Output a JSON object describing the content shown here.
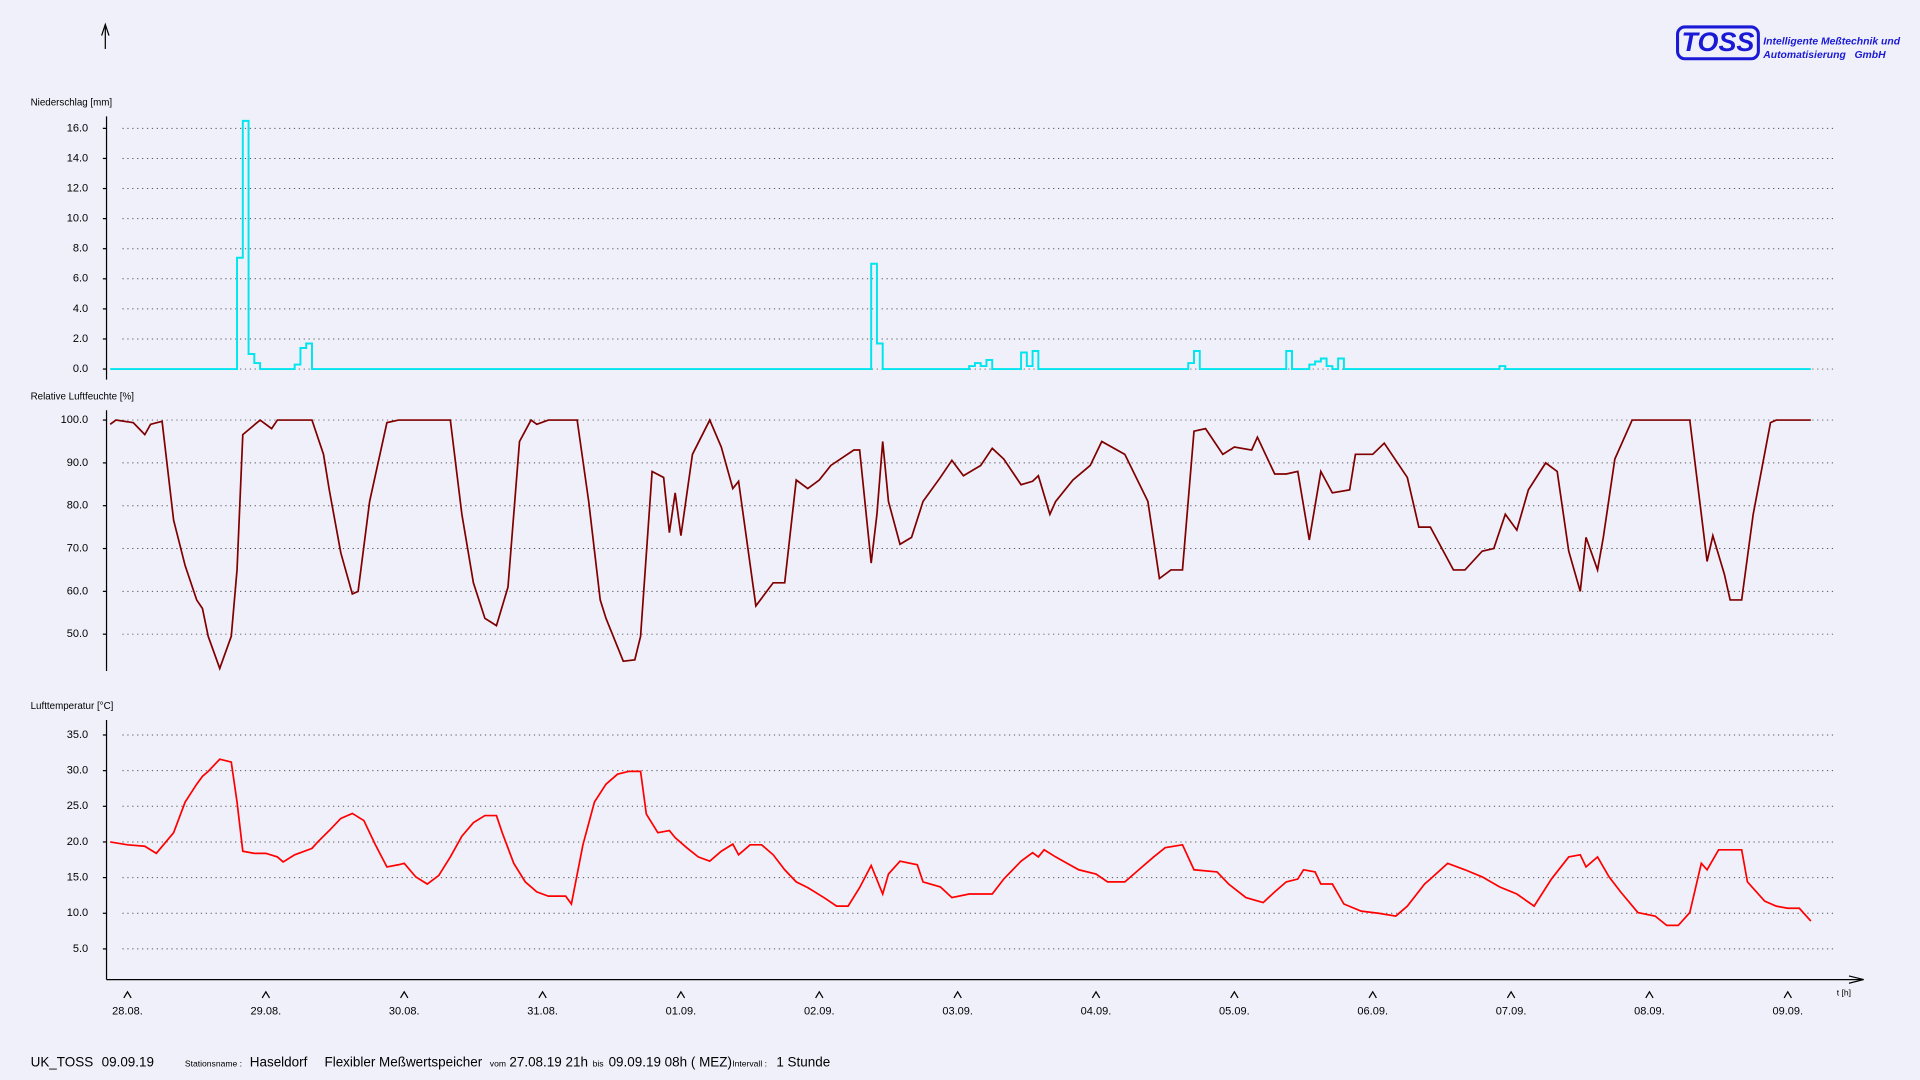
{
  "header": {
    "logo": "TOSS",
    "company": [
      "Intelligente Meßtechnik und",
      "Automatisierung   GmbH"
    ]
  },
  "chart_data": [
    {
      "type": "step",
      "title": "Niederschlag [mm]",
      "color": "#00e5ee",
      "x": [
        0,
        22,
        23,
        24,
        25,
        26,
        32,
        33,
        34,
        35,
        132,
        133,
        134,
        149,
        150,
        151,
        152,
        153,
        158,
        159,
        160,
        161,
        187,
        188,
        189,
        204,
        205,
        208,
        209,
        210,
        211,
        212,
        213,
        214,
        241,
        242,
        295
      ],
      "values": [
        0,
        7.4,
        16.5,
        1.0,
        0.4,
        0,
        0.3,
        1.4,
        1.7,
        0,
        7.0,
        1.7,
        0,
        0.2,
        0.4,
        0.2,
        0.6,
        0,
        1.1,
        0.2,
        1.2,
        0,
        0.4,
        1.2,
        0,
        1.2,
        0,
        0.3,
        0.5,
        0.7,
        0.2,
        0,
        0.7,
        0,
        0.2,
        0,
        0
      ],
      "xlim": [
        0,
        299
      ],
      "ylim": [
        -0.7,
        16.8
      ],
      "yticks": [
        {
          "value": 0,
          "label": "0.0"
        },
        {
          "value": 2,
          "label": "2.0"
        },
        {
          "value": 4,
          "label": "4.0"
        },
        {
          "value": 6,
          "label": "6.0"
        },
        {
          "value": 8,
          "label": "8.0"
        },
        {
          "value": 10,
          "label": "10.0"
        },
        {
          "value": 12,
          "label": "12.0"
        },
        {
          "value": 14,
          "label": "14.0"
        },
        {
          "value": 16,
          "label": "16.0"
        }
      ],
      "grid": true
    },
    {
      "type": "line",
      "title": "Relative Luftfeuchte [%]",
      "color": "#800000",
      "x": [
        0,
        1,
        4,
        5,
        6,
        7,
        9,
        11,
        13,
        15,
        16,
        17,
        19,
        21,
        22,
        23,
        26,
        28,
        29,
        35,
        37,
        38,
        40,
        42,
        43,
        45,
        48,
        50,
        59,
        61,
        63,
        65,
        67,
        69,
        71,
        73,
        74,
        76,
        81,
        83,
        85,
        86,
        89,
        91,
        92,
        94,
        96,
        97,
        98,
        99,
        101,
        104,
        106,
        108,
        109,
        112,
        115,
        117,
        119,
        121,
        123,
        125,
        129,
        130,
        132,
        133,
        134,
        135,
        137,
        139,
        141,
        144,
        146,
        148,
        151,
        153,
        155,
        158,
        160,
        161,
        163,
        164,
        167,
        170,
        172,
        176,
        180,
        182,
        184,
        186,
        188,
        190,
        193,
        195,
        198,
        199,
        202,
        204,
        206,
        208,
        210,
        212,
        215,
        216,
        219,
        221,
        225,
        227,
        229,
        233,
        235,
        238,
        240,
        242,
        244,
        246,
        249,
        251,
        253,
        255,
        256,
        258,
        259,
        261,
        264,
        274,
        277,
        278,
        280,
        281,
        283,
        285,
        288,
        289,
        295
      ],
      "values": [
        99,
        100,
        99.4,
        98,
        96.6,
        99,
        99.7,
        76.6,
        66,
        58,
        56,
        49.5,
        42,
        49.5,
        65,
        96.6,
        100,
        98,
        100,
        100,
        92,
        83.7,
        69,
        59.4,
        60,
        81,
        99.4,
        100,
        100,
        78,
        62,
        53.7,
        52,
        61,
        95,
        100,
        99,
        100,
        100,
        81,
        58,
        53.7,
        43.7,
        44,
        49.5,
        88,
        86.6,
        73.7,
        83,
        73,
        92,
        100,
        93.7,
        84,
        85.7,
        56.6,
        62,
        62,
        86,
        84,
        86,
        89.4,
        93,
        93,
        66.6,
        78,
        95,
        81,
        71,
        72.6,
        81,
        86.6,
        90.6,
        87,
        89.4,
        93.4,
        90.9,
        84.9,
        85.7,
        87,
        78,
        81,
        86,
        89.4,
        95,
        92,
        81,
        63,
        65,
        65,
        97.4,
        98,
        92,
        93.7,
        93,
        96,
        87.4,
        87.4,
        88,
        72,
        88,
        83,
        83.7,
        92,
        92,
        94.6,
        86.6,
        75,
        75,
        65,
        65,
        69.4,
        70,
        78,
        74.3,
        83.7,
        90,
        88,
        69.4,
        60,
        72.6,
        65,
        72.6,
        90.9,
        100,
        100,
        67,
        73,
        64,
        58,
        58,
        78,
        99.4,
        100,
        100
      ],
      "xlim": [
        0,
        299
      ],
      "ylim": [
        41.4,
        102.3
      ],
      "yticks": [
        {
          "value": 50,
          "label": "50.0"
        },
        {
          "value": 60,
          "label": "60.0"
        },
        {
          "value": 70,
          "label": "70.0"
        },
        {
          "value": 80,
          "label": "80.0"
        },
        {
          "value": 90,
          "label": "90.0"
        },
        {
          "value": 100,
          "label": "100.0"
        }
      ],
      "grid": true
    },
    {
      "type": "line",
      "title": "Lufttemperatur [°C]",
      "color": "#ff0000",
      "xlabel": "t [h]",
      "x": [
        0,
        3,
        6,
        8,
        11,
        13,
        15,
        16,
        17,
        19,
        21,
        22,
        23,
        25,
        27,
        29,
        30,
        32,
        35,
        36,
        38,
        40,
        42,
        44,
        46,
        48,
        50,
        51,
        53,
        55,
        57,
        59,
        61,
        63,
        65,
        67,
        68,
        70,
        72,
        74,
        76,
        79,
        80,
        82,
        84,
        86,
        88,
        90,
        92,
        93,
        95,
        97,
        98,
        100,
        102,
        104,
        106,
        108,
        109,
        111,
        113,
        115,
        117,
        119,
        121,
        124,
        126,
        128,
        130,
        132,
        134,
        135,
        137,
        140,
        141,
        144,
        146,
        149,
        153,
        155,
        158,
        160,
        161,
        162,
        164,
        166,
        168,
        171,
        173,
        176,
        178,
        181,
        183,
        186,
        188,
        192,
        194,
        197,
        200,
        202,
        204,
        206,
        207,
        209,
        210,
        212,
        214,
        217,
        220,
        223,
        225,
        228,
        229,
        232,
        235,
        238,
        241,
        244,
        247,
        250,
        253,
        255,
        256,
        258,
        260,
        262,
        265,
        268,
        270,
        272,
        274,
        276,
        277,
        279,
        283,
        284,
        287,
        289,
        291,
        293,
        295
      ],
      "values": [
        20.0,
        19.6,
        19.4,
        18.4,
        21.3,
        25.6,
        28.1,
        29.2,
        29.9,
        31.6,
        31.2,
        25.6,
        18.7,
        18.4,
        18.4,
        17.9,
        17.2,
        18.2,
        19.1,
        20.0,
        21.6,
        23.3,
        24.0,
        23.0,
        19.6,
        16.5,
        16.8,
        17.0,
        15.1,
        14.1,
        15.3,
        17.9,
        20.8,
        22.7,
        23.7,
        23.7,
        21.3,
        17.0,
        14.4,
        13.0,
        12.4,
        12.4,
        11.3,
        19.6,
        25.6,
        28.1,
        29.5,
        29.9,
        29.9,
        23.9,
        21.3,
        21.6,
        20.6,
        19.2,
        17.9,
        17.3,
        18.7,
        19.7,
        18.2,
        19.6,
        19.6,
        18.2,
        16.1,
        14.4,
        13.6,
        12.1,
        11.0,
        11.0,
        13.6,
        16.7,
        12.7,
        15.5,
        17.3,
        16.8,
        14.4,
        13.7,
        12.2,
        12.7,
        12.7,
        14.8,
        17.3,
        18.5,
        17.9,
        18.9,
        17.9,
        17.0,
        16.1,
        15.5,
        14.4,
        14.4,
        15.8,
        17.9,
        19.2,
        19.6,
        16.1,
        15.8,
        14.1,
        12.2,
        11.5,
        13.0,
        14.4,
        14.8,
        16.1,
        15.8,
        14.1,
        14.1,
        11.3,
        10.3,
        10.0,
        9.6,
        11.0,
        14.1,
        14.8,
        17.0,
        16.1,
        15.1,
        13.7,
        12.7,
        11.0,
        14.8,
        17.9,
        18.2,
        16.5,
        17.9,
        15.1,
        13.0,
        10.1,
        9.6,
        8.3,
        8.3,
        10.1,
        17.0,
        16.1,
        18.9,
        18.9,
        14.4,
        11.7,
        11.0,
        10.7,
        10.7,
        8.9
      ],
      "xlim": [
        0,
        299
      ],
      "ylim": [
        0.7,
        37.1
      ],
      "yticks": [
        {
          "value": 5,
          "label": "5.0"
        },
        {
          "value": 10,
          "label": "10.0"
        },
        {
          "value": 15,
          "label": "15.0"
        },
        {
          "value": 20,
          "label": "20.0"
        },
        {
          "value": 25,
          "label": "25.0"
        },
        {
          "value": 30,
          "label": "30.0"
        },
        {
          "value": 35,
          "label": "35.0"
        }
      ],
      "xticks": [
        {
          "value": 3,
          "label": "28.08."
        },
        {
          "value": 27,
          "label": "29.08."
        },
        {
          "value": 51,
          "label": "30.08."
        },
        {
          "value": 75,
          "label": "31.08."
        },
        {
          "value": 99,
          "label": "01.09."
        },
        {
          "value": 123,
          "label": "02.09."
        },
        {
          "value": 147,
          "label": "03.09."
        },
        {
          "value": 171,
          "label": "04.09."
        },
        {
          "value": 195,
          "label": "05.09."
        },
        {
          "value": 219,
          "label": "06.09."
        },
        {
          "value": 243,
          "label": "07.09."
        },
        {
          "value": 267,
          "label": "08.09."
        },
        {
          "value": 291,
          "label": "09.09."
        }
      ],
      "grid": true
    }
  ],
  "footer": {
    "station_id": "UK_TOSS",
    "date": "09.09.19",
    "station_label": "Stationsname :",
    "station": "Haseldorf",
    "device": "Flexibler Meßwertspeicher",
    "from_label": "vom",
    "from": "27.08.19 21h",
    "to_label": "bis",
    "to": "09.09.19 08h ( MEZ)",
    "interval_label": "Intervall :",
    "interval": "1 Stunde"
  }
}
